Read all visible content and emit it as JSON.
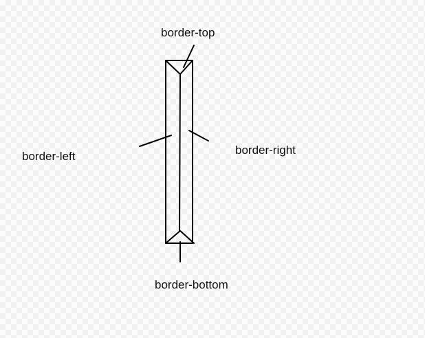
{
  "diagram": {
    "labels": {
      "top": "border-top",
      "left": "border-left",
      "right": "border-right",
      "bottom": "border-bottom"
    },
    "stroke_color": "#000000",
    "label_color": "#111111"
  }
}
